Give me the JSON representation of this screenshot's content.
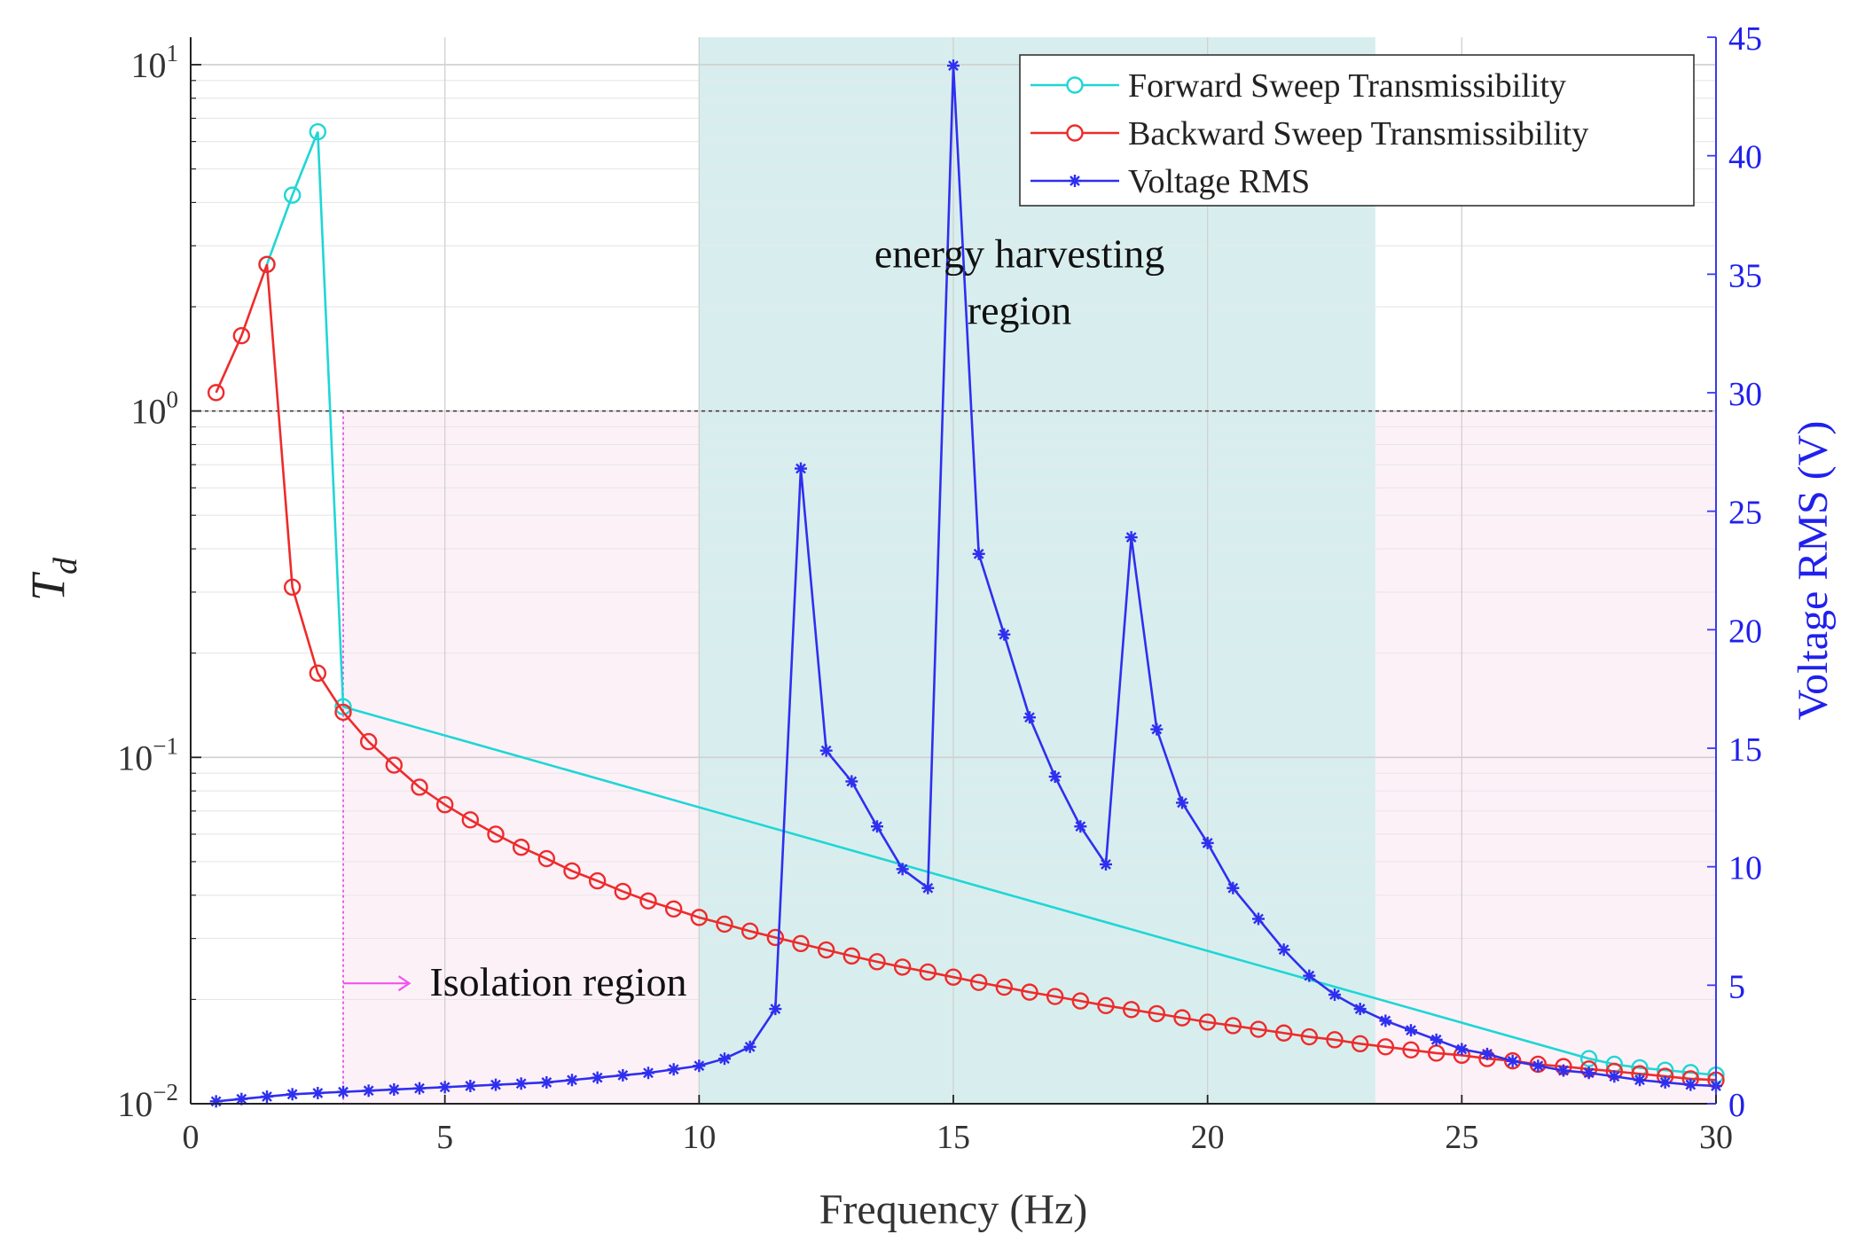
{
  "chart_data": {
    "type": "line",
    "title": "",
    "xlabel": "Frequency (Hz)",
    "ylabel_left": "T",
    "ylabel_left_sub": "d",
    "ylabel_right": "Voltage RMS (V)",
    "xlim": [
      0,
      30
    ],
    "ylim_left_log": [
      0.01,
      12
    ],
    "ylim_right": [
      0,
      45
    ],
    "x_ticks": [
      "0",
      "5",
      "10",
      "15",
      "20",
      "25",
      "30"
    ],
    "y_left_ticks": [
      {
        "base": "10",
        "exp": "1"
      },
      {
        "base": "10",
        "exp": "0"
      },
      {
        "base": "10",
        "exp": "−1"
      },
      {
        "base": "10",
        "exp": "−2"
      }
    ],
    "y_right_ticks": [
      "0",
      "5",
      "10",
      "15",
      "20",
      "25",
      "30",
      "35",
      "40",
      "45"
    ],
    "grid": true,
    "legend_position": "top-right",
    "reference_line": {
      "y": 1.0,
      "style": "dashed",
      "color": "#333333"
    },
    "regions": [
      {
        "name": "energy harvesting region",
        "x_start": 10,
        "x_end": 23.3,
        "color": "#d8eeee"
      },
      {
        "name": "isolation region",
        "x_start": 3,
        "x_end": 30,
        "y_top": 1.0,
        "color": "#fdf1f8"
      }
    ],
    "annotations": [
      {
        "name": "energy-harvesting-label",
        "lines": [
          "energy harvesting",
          "region"
        ],
        "x": 16.3,
        "y": 2.6
      },
      {
        "name": "isolation-label",
        "text": "Isolation region",
        "x": 4.7,
        "y": 0.0205,
        "arrow_from_x": 3.0,
        "arrow_to_x": 4.3
      }
    ],
    "series": [
      {
        "name": "Forward Sweep Transmissibility",
        "axis": "left",
        "color": "#1fd6d6",
        "marker": "circle",
        "x": [
          1.5,
          2.0,
          2.5,
          3.0,
          27.5,
          28.0,
          28.5,
          29.0,
          29.5,
          30.0
        ],
        "y": [
          2.65,
          4.2,
          6.4,
          0.14,
          0.0135,
          0.013,
          0.0127,
          0.0125,
          0.0123,
          0.0121
        ]
      },
      {
        "name": "Backward Sweep Transmissibility",
        "axis": "left",
        "color": "#ee2b2b",
        "marker": "circle",
        "x": [
          0.5,
          1.0,
          1.5,
          2.0,
          2.5,
          3.0,
          3.5,
          4.0,
          4.5,
          5.0,
          5.5,
          6.0,
          6.5,
          7.0,
          7.5,
          8.0,
          8.5,
          9.0,
          9.5,
          10.0,
          10.5,
          11.0,
          11.5,
          12.0,
          12.5,
          13.0,
          13.5,
          14.0,
          14.5,
          15.0,
          15.5,
          16.0,
          16.5,
          17.0,
          17.5,
          18.0,
          18.5,
          19.0,
          19.5,
          20.0,
          20.5,
          21.0,
          21.5,
          22.0,
          22.5,
          23.0,
          23.5,
          24.0,
          24.5,
          25.0,
          25.5,
          26.0,
          26.5,
          27.0,
          27.5,
          28.0,
          28.5,
          29.0,
          29.5,
          30.0
        ],
        "y": [
          1.13,
          1.65,
          2.65,
          0.31,
          0.175,
          0.135,
          0.111,
          0.095,
          0.082,
          0.073,
          0.066,
          0.06,
          0.055,
          0.051,
          0.047,
          0.044,
          0.041,
          0.0385,
          0.0365,
          0.0345,
          0.033,
          0.0315,
          0.0302,
          0.029,
          0.0278,
          0.0267,
          0.0257,
          0.0248,
          0.024,
          0.0232,
          0.0224,
          0.0217,
          0.021,
          0.0204,
          0.0198,
          0.0192,
          0.0187,
          0.0182,
          0.0177,
          0.0172,
          0.0168,
          0.0164,
          0.016,
          0.0156,
          0.0153,
          0.0149,
          0.0146,
          0.0143,
          0.014,
          0.0138,
          0.0135,
          0.0133,
          0.013,
          0.0128,
          0.0126,
          0.0124,
          0.0122,
          0.012,
          0.0118,
          0.0117
        ]
      },
      {
        "name": "Voltage RMS",
        "axis": "right",
        "color": "#2f2ff0",
        "marker": "asterisk",
        "x": [
          0.5,
          1.0,
          1.5,
          2.0,
          2.5,
          3.0,
          3.5,
          4.0,
          4.5,
          5.0,
          5.5,
          6.0,
          6.5,
          7.0,
          7.5,
          8.0,
          8.5,
          9.0,
          9.5,
          10.0,
          10.5,
          11.0,
          11.5,
          12.0,
          12.5,
          13.0,
          13.5,
          14.0,
          14.5,
          15.0,
          15.5,
          16.0,
          16.5,
          17.0,
          17.5,
          18.0,
          18.5,
          19.0,
          19.5,
          20.0,
          20.5,
          21.0,
          21.5,
          22.0,
          22.5,
          23.0,
          23.5,
          24.0,
          24.5,
          25.0,
          25.5,
          26.0,
          26.5,
          27.0,
          27.5,
          28.0,
          28.5,
          29.0,
          29.5,
          30.0
        ],
        "y": [
          0.1,
          0.2,
          0.3,
          0.4,
          0.45,
          0.5,
          0.55,
          0.6,
          0.65,
          0.7,
          0.75,
          0.8,
          0.85,
          0.9,
          1.0,
          1.1,
          1.2,
          1.3,
          1.45,
          1.6,
          1.9,
          2.4,
          4.0,
          26.8,
          14.9,
          13.6,
          11.7,
          9.9,
          9.1,
          43.8,
          23.2,
          19.8,
          16.3,
          13.8,
          11.7,
          10.1,
          23.9,
          15.8,
          12.7,
          11.0,
          9.1,
          7.8,
          6.5,
          5.4,
          4.6,
          4.0,
          3.5,
          3.1,
          2.7,
          2.3,
          2.1,
          1.8,
          1.6,
          1.4,
          1.3,
          1.15,
          1.0,
          0.9,
          0.8,
          0.75
        ]
      }
    ]
  }
}
